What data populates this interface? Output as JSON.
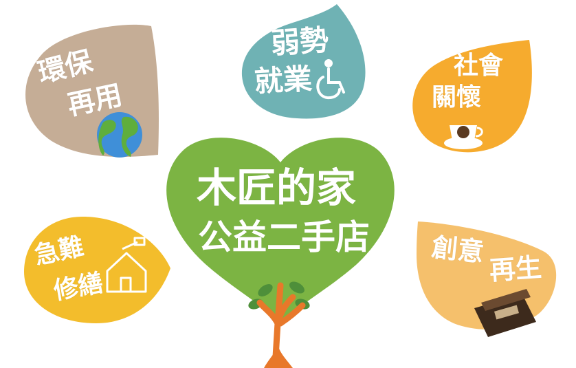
{
  "center": {
    "line1": "木匠的家",
    "line2": "公益二手店"
  },
  "leaves": {
    "environment": {
      "line1": "環保",
      "line2": "再用",
      "color": "#c5ad96"
    },
    "employment": {
      "line1": "弱勢",
      "line2": "就業",
      "color": "#6fb2b4"
    },
    "social": {
      "line1": "社會",
      "line2": "關懷",
      "color": "#f6ab2e"
    },
    "repair": {
      "line1": "急難",
      "line2": "修繕",
      "color": "#f3bd2c"
    },
    "upcycle": {
      "line1": "創意",
      "line2": "再生",
      "color": "#f5c06c"
    }
  },
  "heart_color": "#7cb443",
  "trunk_color": "#e8782a",
  "icons": [
    "globe-icon",
    "wheelchair-icon",
    "coffee-cup-icon",
    "house-hammer-icon",
    "wood-product-icon",
    "tree-icon"
  ]
}
